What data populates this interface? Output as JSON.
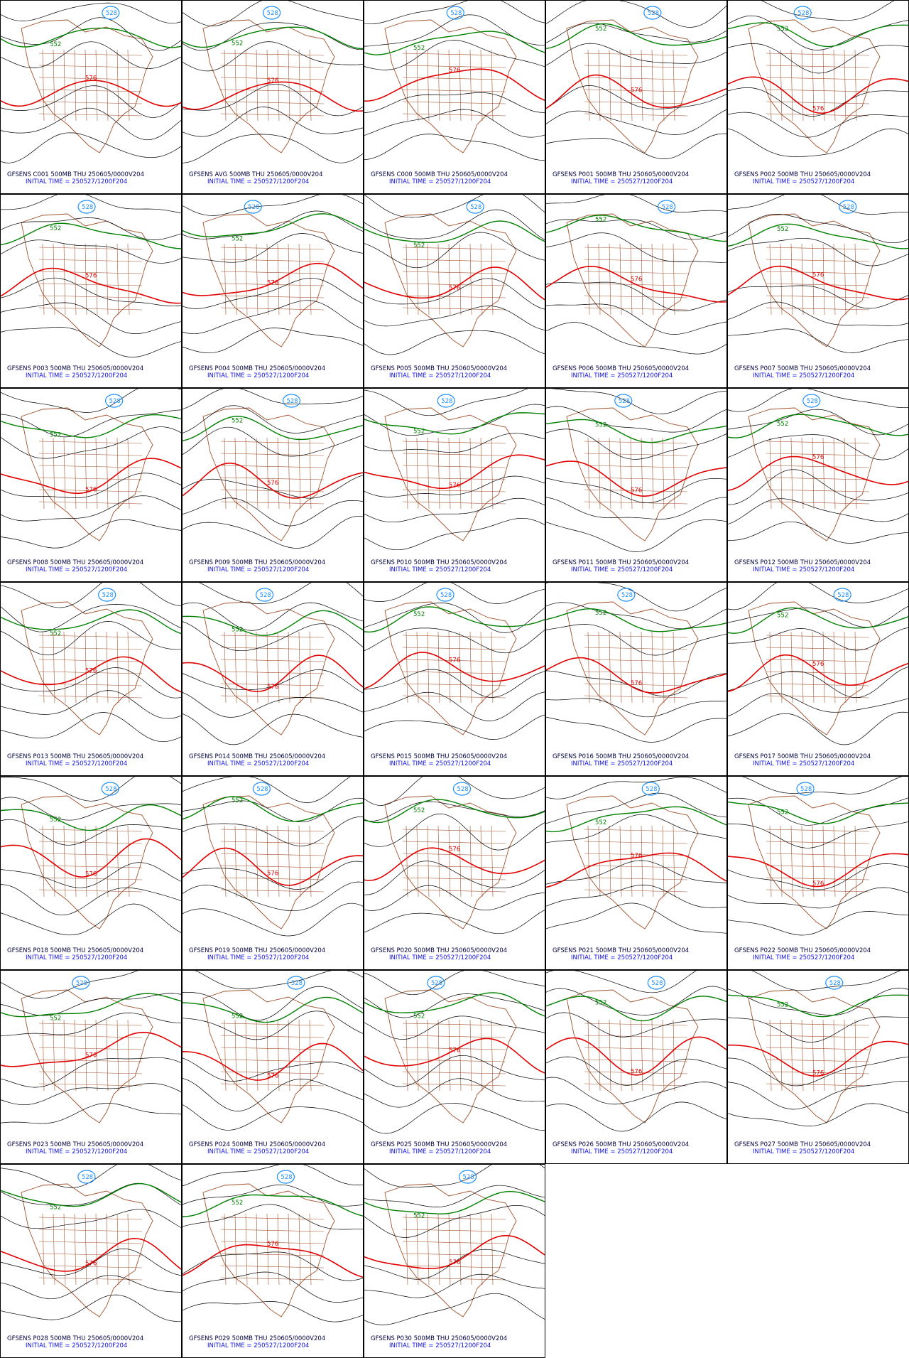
{
  "panels": [
    {
      "title": "GFSENS C001 500MB THU 250605/0000V204",
      "initial_time": "INITIAL TIME = 250527/1200F204"
    },
    {
      "title": "GFSENS AVG 500MB THU 250605/0000V204",
      "initial_time": "INITIAL TIME = 250527/1200F204"
    },
    {
      "title": "GFSENS C000 500MB THU 250605/0000V204",
      "initial_time": "INITIAL TIME = 250527/1200F204"
    },
    {
      "title": "GFSENS P001 500MB THU 250605/0000V204",
      "initial_time": "INITIAL TIME = 250527/1200F204"
    },
    {
      "title": "GFSENS P002 500MB THU 250605/0000V204",
      "initial_time": "INITIAL TIME = 250527/1200F204"
    },
    {
      "title": "GFSENS P003 500MB THU 250605/0000V204",
      "initial_time": "INITIAL TIME = 250527/1200F204"
    },
    {
      "title": "GFSENS P004 500MB THU 250605/0000V204",
      "initial_time": "INITIAL TIME = 250527/1200F204"
    },
    {
      "title": "GFSENS P005 500MB THU 250605/0000V204",
      "initial_time": "INITIAL TIME = 250527/1200F204"
    },
    {
      "title": "GFSENS P006 500MB THU 250605/0000V204",
      "initial_time": "INITIAL TIME = 250527/1200F204"
    },
    {
      "title": "GFSENS P007 500MB THU 250605/0000V204",
      "initial_time": "INITIAL TIME = 250527/1200F204"
    },
    {
      "title": "GFSENS P008 500MB THU 250605/0000V204",
      "initial_time": "INITIAL TIME = 250527/1200F204"
    },
    {
      "title": "GFSENS P009 500MB THU 250605/0000V204",
      "initial_time": "INITIAL TIME = 250527/1200F204"
    },
    {
      "title": "GFSENS P010 500MB THU 250605/0000V204",
      "initial_time": "INITIAL TIME = 250527/1200F204"
    },
    {
      "title": "GFSENS P011 500MB THU 250605/0000V204",
      "initial_time": "INITIAL TIME = 250527/1200F204"
    },
    {
      "title": "GFSENS P012 500MB THU 250605/0000V204",
      "initial_time": "INITIAL TIME = 250527/1200F204"
    },
    {
      "title": "GFSENS P013 500MB THU 250605/0000V204",
      "initial_time": "INITIAL TIME = 250527/1200F204"
    },
    {
      "title": "GFSENS P014 500MB THU 250605/0000V204",
      "initial_time": "INITIAL TIME = 250527/1200F204"
    },
    {
      "title": "GFSENS P015 500MB THU 250605/0000V204",
      "initial_time": "INITIAL TIME = 250527/1200F204"
    },
    {
      "title": "GFSENS P016 500MB THU 250605/0000V204",
      "initial_time": "INITIAL TIME = 250527/1200F204"
    },
    {
      "title": "GFSENS P017 500MB THU 250605/0000V204",
      "initial_time": "INITIAL TIME = 250527/1200F204"
    },
    {
      "title": "GFSENS P018 500MB THU 250605/0000V204",
      "initial_time": "INITIAL TIME = 250527/1200F204"
    },
    {
      "title": "GFSENS P019 500MB THU 250605/0000V204",
      "initial_time": "INITIAL TIME = 250527/1200F204"
    },
    {
      "title": "GFSENS P020 500MB THU 250605/0000V204",
      "initial_time": "INITIAL TIME = 250527/1200F204"
    },
    {
      "title": "GFSENS P021 500MB THU 250605/0000V204",
      "initial_time": "INITIAL TIME = 250527/1200F204"
    },
    {
      "title": "GFSENS P022 500MB THU 250605/0000V204",
      "initial_time": "INITIAL TIME = 250527/1200F204"
    },
    {
      "title": "GFSENS P023 500MB THU 250605/0000V204",
      "initial_time": "INITIAL TIME = 250527/1200F204"
    },
    {
      "title": "GFSENS P024 500MB THU 250605/0000V204",
      "initial_time": "INITIAL TIME = 250527/1200F204"
    },
    {
      "title": "GFSENS P025 500MB THU 250605/0000V204",
      "initial_time": "INITIAL TIME = 250527/1200F204"
    },
    {
      "title": "GFSENS P026 500MB THU 250605/0000V204",
      "initial_time": "INITIAL TIME = 250527/1200F204"
    },
    {
      "title": "GFSENS P027 500MB THU 250605/0000V204",
      "initial_time": "INITIAL TIME = 250527/1200F204"
    },
    {
      "title": "GFSENS P028 500MB THU 250605/0000V204",
      "initial_time": "INITIAL TIME = 250527/1200F204"
    },
    {
      "title": "GFSENS P029 500MB THU 250605/0000V204",
      "initial_time": "INITIAL TIME = 250527/1200F204"
    },
    {
      "title": "GFSENS P030 500MB THU 250605/0000V204",
      "initial_time": "INITIAL TIME = 250527/1200F204"
    }
  ],
  "contour_labels": {
    "green": "552",
    "red": "576",
    "blue": "528"
  }
}
